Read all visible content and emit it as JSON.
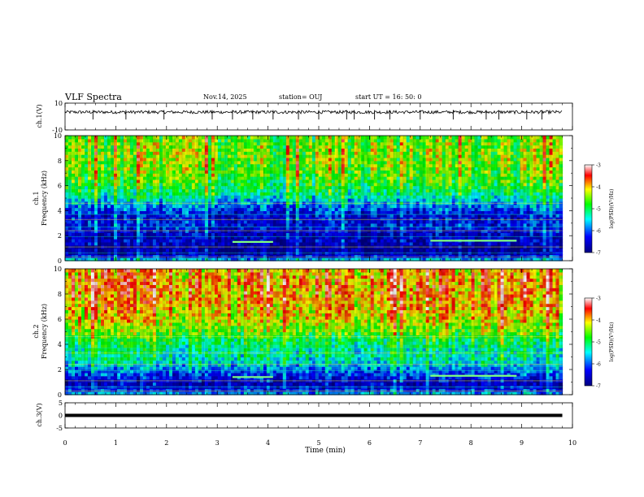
{
  "header": {
    "title": "VLF Spectra",
    "date": "Nov.14, 2025",
    "station": "station= OUJ",
    "start": "start  UT =   16: 50: 0"
  },
  "chart_data": [
    {
      "type": "line",
      "name": "ch1-waveform",
      "ylabel": "ch.1(V)",
      "ylim": [
        -10,
        10
      ],
      "yticks": [
        "10",
        "-10"
      ],
      "x_unit": "min",
      "xlim": [
        0,
        10
      ],
      "data_extent_min": 9.8,
      "baseline": 3.3,
      "spike_times": [
        0.55,
        1.2,
        1.95,
        2.9,
        3.3,
        3.7,
        4.1,
        4.6,
        5.0,
        5.55,
        5.7,
        6.1,
        6.4,
        7.0,
        7.65,
        8.3,
        8.55,
        9.1,
        9.4
      ]
    },
    {
      "type": "heatmap",
      "name": "ch1-spectrogram",
      "ylabel": "ch.1\nFrequency (kHz)",
      "ylim": [
        0,
        10
      ],
      "yticks": [
        "0",
        "2",
        "4",
        "6",
        "8",
        "10"
      ],
      "xlim": [
        0,
        10
      ],
      "data_extent_min": 9.8,
      "band_profile_khz": [
        0,
        0.5,
        1.0,
        1.5,
        2.0,
        2.5,
        3.0,
        3.5,
        4.0,
        4.5,
        5.0,
        5.5,
        6.0,
        7.0,
        8.0,
        9.0,
        10.0
      ],
      "band_profile_logpsd": [
        -5.4,
        -6.6,
        -6.8,
        -6.5,
        -6.6,
        -6.4,
        -6.3,
        -6.4,
        -6.2,
        -5.8,
        -5.4,
        -5.1,
        -4.9,
        -4.6,
        -4.5,
        -4.5,
        -4.6
      ],
      "features": [
        {
          "label": "tone",
          "t_start": 3.3,
          "t_end": 4.1,
          "freq_khz": 1.5
        },
        {
          "label": "tone",
          "t_start": 7.2,
          "t_end": 8.9,
          "freq_khz": 1.6
        }
      ],
      "colorbar": {
        "label": "log(PSD)(V²/Hz)",
        "range": [
          -7,
          -3
        ],
        "ticks": [
          "-3",
          "-4",
          "-5",
          "-6",
          "-7"
        ]
      }
    },
    {
      "type": "heatmap",
      "name": "ch2-spectrogram",
      "ylabel": "ch.2\nFrequency (kHz)",
      "ylim": [
        0,
        10
      ],
      "yticks": [
        "0",
        "2",
        "4",
        "6",
        "8",
        "10"
      ],
      "xlim": [
        0,
        10
      ],
      "data_extent_min": 9.8,
      "band_profile_khz": [
        0,
        0.5,
        1.0,
        1.5,
        2.0,
        2.5,
        3.0,
        3.5,
        4.0,
        4.5,
        5.0,
        5.5,
        6.0,
        7.0,
        8.0,
        9.0,
        10.0
      ],
      "band_profile_logpsd": [
        -5.6,
        -6.4,
        -6.6,
        -6.2,
        -5.9,
        -5.5,
        -5.3,
        -5.3,
        -5.1,
        -4.9,
        -4.6,
        -4.4,
        -4.2,
        -4.0,
        -3.9,
        -3.9,
        -4.0
      ],
      "features": [
        {
          "label": "tone",
          "t_start": 3.3,
          "t_end": 4.1,
          "freq_khz": 1.4
        },
        {
          "label": "tone",
          "t_start": 7.2,
          "t_end": 8.9,
          "freq_khz": 1.5
        }
      ],
      "colorbar": {
        "label": "log(PSD)(V²/Hz)",
        "range": [
          -7,
          -3
        ],
        "ticks": [
          "-3",
          "-4",
          "-5",
          "-6",
          "-7"
        ]
      }
    },
    {
      "type": "line",
      "name": "ch3-waveform",
      "ylabel": "ch.3(V)",
      "ylim": [
        -5,
        5
      ],
      "yticks": [
        "5",
        "0",
        "-5"
      ],
      "xlim": [
        0,
        10
      ],
      "data_extent_min": 9.8,
      "baseline": 0
    }
  ],
  "xaxis": {
    "label": "Time (min)",
    "ticks": [
      "0",
      "1",
      "2",
      "3",
      "4",
      "5",
      "6",
      "7",
      "8",
      "9",
      "10"
    ]
  }
}
